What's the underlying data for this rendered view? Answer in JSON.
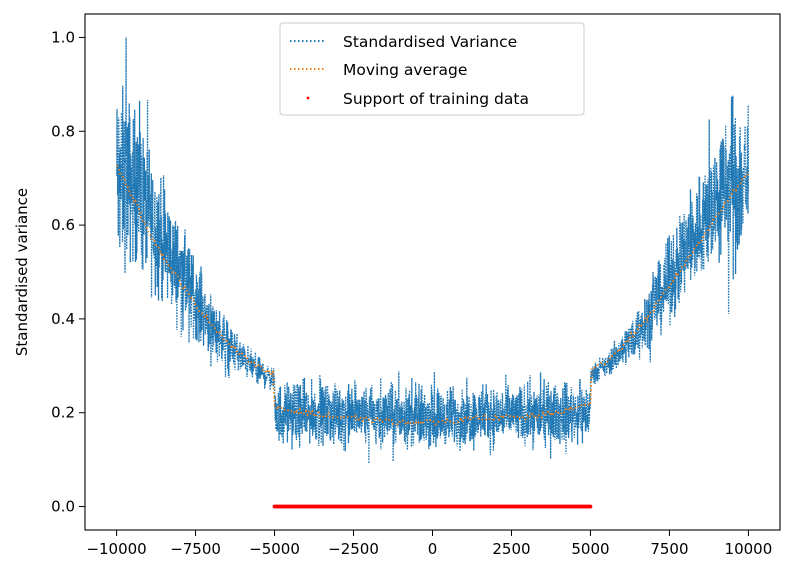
{
  "chart_data": {
    "type": "line",
    "title": "",
    "xlabel": "",
    "ylabel": "Standardised variance",
    "xlim": [
      -11000,
      11000
    ],
    "ylim": [
      -0.05,
      1.05
    ],
    "xticks": [
      -10000,
      -7500,
      -5000,
      -2500,
      0,
      2500,
      5000,
      7500,
      10000
    ],
    "xtick_labels": [
      "−10000",
      "−7500",
      "−5000",
      "−2500",
      "0",
      "2500",
      "5000",
      "7500",
      "10000"
    ],
    "yticks": [
      0.0,
      0.2,
      0.4,
      0.6,
      0.8,
      1.0
    ],
    "ytick_labels": [
      "0.0",
      "0.2",
      "0.4",
      "0.6",
      "0.8",
      "1.0"
    ],
    "grid": false,
    "legend_position": "top-center",
    "series": [
      {
        "name": "Standardised Variance",
        "style": "dotted-line",
        "color": "#1f77b4",
        "band_x": [
          -10000,
          -9500,
          -9000,
          -8500,
          -8000,
          -7500,
          -7000,
          -6500,
          -6000,
          -5500,
          -5000,
          -4999,
          0,
          4999,
          5000,
          5500,
          6000,
          6500,
          7000,
          7500,
          8000,
          8500,
          9000,
          9500,
          10000
        ],
        "band_low": [
          0.45,
          0.48,
          0.44,
          0.4,
          0.37,
          0.34,
          0.31,
          0.29,
          0.27,
          0.25,
          0.24,
          0.12,
          0.11,
          0.12,
          0.26,
          0.27,
          0.29,
          0.31,
          0.34,
          0.37,
          0.41,
          0.45,
          0.49,
          0.47,
          0.47
        ],
        "band_high": [
          0.95,
          0.9,
          0.81,
          0.71,
          0.63,
          0.55,
          0.47,
          0.41,
          0.36,
          0.33,
          0.3,
          0.28,
          0.27,
          0.28,
          0.3,
          0.33,
          0.38,
          0.44,
          0.51,
          0.59,
          0.67,
          0.75,
          0.82,
          0.9,
          0.94
        ],
        "max_value": 1.0
      },
      {
        "name": "Moving average",
        "style": "dotted-line",
        "color": "#ff7f0e",
        "x": [
          -10000,
          -9500,
          -9000,
          -8500,
          -8000,
          -7500,
          -7000,
          -6500,
          -6000,
          -5500,
          -5000,
          -4999,
          -4000,
          -3000,
          -2000,
          -1000,
          0,
          1000,
          2000,
          3000,
          4000,
          4999,
          5000,
          5500,
          6000,
          6500,
          7000,
          7500,
          8000,
          8500,
          9000,
          9500,
          10000
        ],
        "values": [
          0.73,
          0.66,
          0.59,
          0.53,
          0.48,
          0.43,
          0.39,
          0.35,
          0.32,
          0.3,
          0.28,
          0.21,
          0.2,
          0.19,
          0.185,
          0.18,
          0.18,
          0.185,
          0.19,
          0.19,
          0.2,
          0.22,
          0.29,
          0.31,
          0.34,
          0.38,
          0.42,
          0.47,
          0.52,
          0.57,
          0.62,
          0.67,
          0.71
        ]
      },
      {
        "name": "Support of training data",
        "style": "scatter",
        "color": "#ff0000",
        "x_range": [
          -5000,
          5000
        ],
        "y": 0.0
      }
    ]
  }
}
